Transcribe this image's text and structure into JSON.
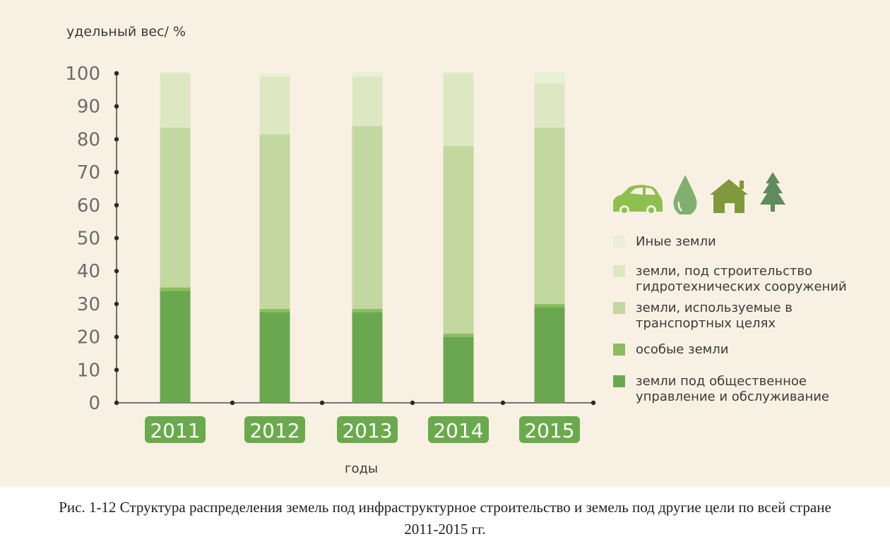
{
  "colors": {
    "background": "#f8f1e3",
    "axis": "#2a2a2a",
    "tick_text": "#6b6b6b",
    "year_badge": "#6aaa4c",
    "icon_light": "#8ec04f",
    "icon_mid": "#7fb070",
    "icon_dark": "#7f9a3c",
    "icon_tree": "#5e8c5a"
  },
  "icons": [
    "car-icon",
    "water-drop-icon",
    "house-icon",
    "tree-icon"
  ],
  "chart_data": {
    "type": "bar",
    "stacked": true,
    "ylabel": "удельный вес/ %",
    "xlabel": "годы",
    "ylim": [
      0,
      100
    ],
    "yticks": [
      0,
      10,
      20,
      30,
      40,
      50,
      60,
      70,
      80,
      90,
      100
    ],
    "categories": [
      "2011",
      "2012",
      "2013",
      "2014",
      "2015"
    ],
    "grid": false,
    "legend_position": "right",
    "series": [
      {
        "name": "земли под общественное управление и обслуживание",
        "color": "#6aa84f",
        "values": [
          34,
          27.5,
          27.5,
          20,
          29
        ]
      },
      {
        "name": "особые земли",
        "color": "#8cbd5e",
        "values": [
          1,
          1,
          1,
          1,
          1
        ]
      },
      {
        "name": "земли, используемые в транспортных целях",
        "color": "#c2d89e",
        "values": [
          48.5,
          53,
          55.5,
          57,
          53.5
        ]
      },
      {
        "name": "земли, под строительство гидротехнических сооружений",
        "color": "#dde8c3",
        "values": [
          16.5,
          17.5,
          15,
          22,
          13.5
        ]
      },
      {
        "name": "Иные земли",
        "color": "#e8f0d6",
        "values": [
          0.5,
          1,
          1.5,
          0.5,
          3.5
        ]
      }
    ]
  },
  "legend": [
    {
      "label": "Иные земли",
      "color": "#e8f0d6"
    },
    {
      "label": "земли, под строительство гидротехнических сооружений",
      "color": "#dde8c3"
    },
    {
      "label": "земли, используемые в транспортных целях",
      "color": "#c2d89e"
    },
    {
      "label": "особые земли",
      "color": "#8cbd5e"
    },
    {
      "label": "земли под общественное управление и обслуживание",
      "color": "#6aa84f"
    }
  ],
  "caption": {
    "line1": "Рис. 1-12 Структура распределения земель под инфраструктурное строительство и земель под другие цели по всей стране",
    "line2": "2011-2015 гг."
  }
}
